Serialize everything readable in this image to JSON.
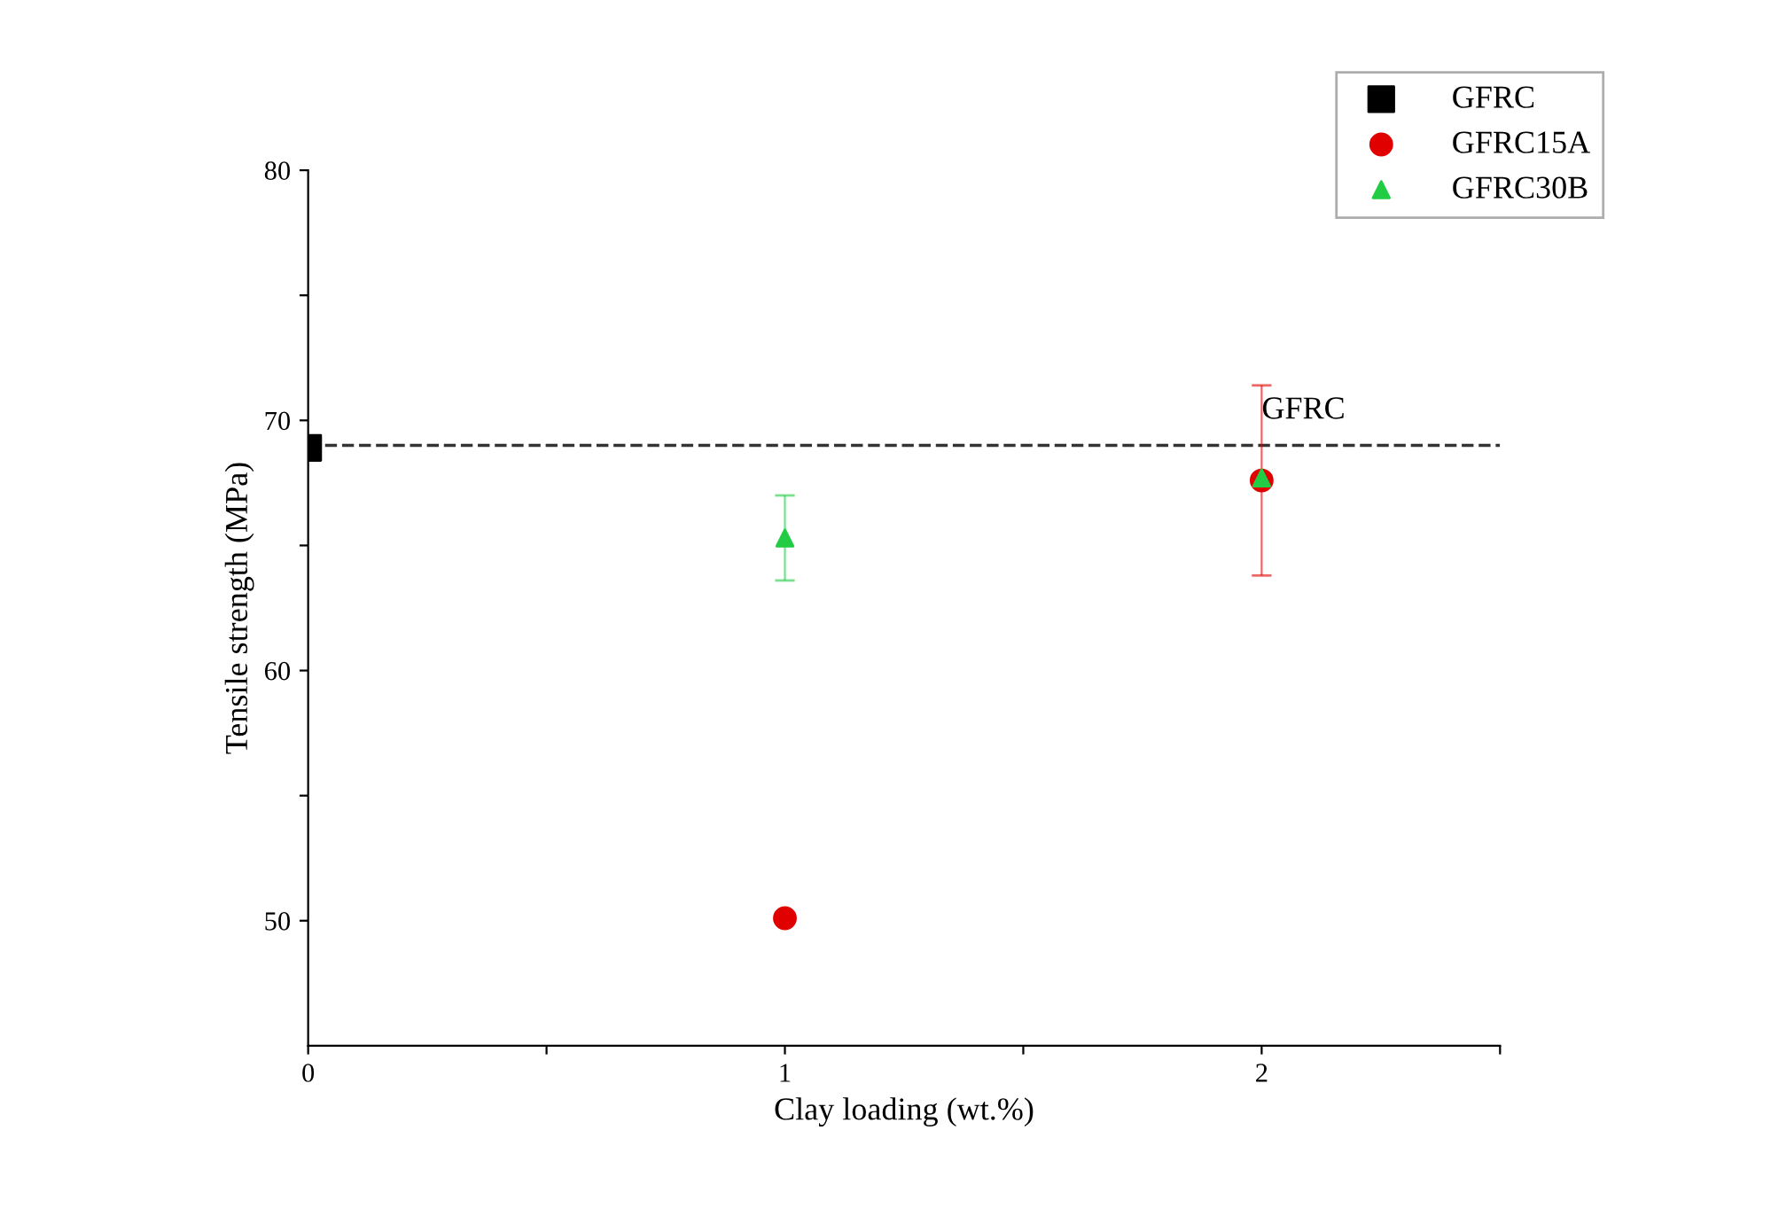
{
  "chart_data": {
    "type": "scatter",
    "xlabel": "Clay loading (wt.%)",
    "ylabel": "Tensile strength (MPa)",
    "xlim": [
      0,
      2.5
    ],
    "xticks": [
      0,
      {
        "value": 0.5,
        "label": null
      },
      1,
      {
        "value": 1.5,
        "label": null
      },
      2,
      {
        "value": 2.5,
        "label": null
      }
    ],
    "ylim": [
      45,
      80
    ],
    "yticks": [
      50,
      {
        "value": 55,
        "label": null
      },
      60,
      {
        "value": 65,
        "label": null
      },
      70,
      {
        "value": 75,
        "label": null
      },
      80
    ],
    "series": [
      {
        "name": "GFRC",
        "color": "#000000",
        "marker": "square",
        "x": [
          0
        ],
        "values": [
          68.9
        ]
      },
      {
        "name": "GFRC15A",
        "color": "#e00000",
        "marker": "circle",
        "x": [
          1,
          2
        ],
        "values": [
          50.1,
          67.6
        ],
        "errors": [
          null,
          3.8
        ]
      },
      {
        "name": "GFRC30B",
        "color": "#22cc44",
        "marker": "triangle",
        "x": [
          1,
          2
        ],
        "values": [
          65.3,
          67.7
        ],
        "errors": [
          1.7,
          null
        ]
      }
    ],
    "ref_lines": [
      {
        "axis": "y",
        "value": 69,
        "label": "GFRC",
        "color": "#333333",
        "line_style": "dashed"
      }
    ],
    "legend": "top right",
    "grid": false
  }
}
